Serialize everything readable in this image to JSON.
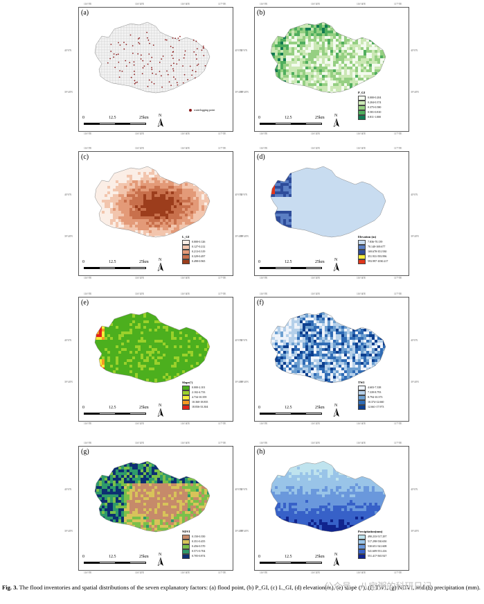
{
  "panels": [
    {
      "id": "a",
      "label": "(a)",
      "type": "points",
      "legend_title": "",
      "legend_items": [],
      "point_label": "waterlogging point",
      "point_color": "#8b1a1a",
      "base": "#f4f4f4",
      "grid": "#c8c8c8"
    },
    {
      "id": "b",
      "label": "(b)",
      "type": "classes",
      "legend_title": "P_GI",
      "legend_items": [
        {
          "label": "0.000-0.204",
          "color": "#f3faee"
        },
        {
          "label": "0.204-0.374",
          "color": "#cbe8b5"
        },
        {
          "label": "0.375-0.580",
          "color": "#95cf82"
        },
        {
          "label": "0.581-0.810",
          "color": "#4fae5d"
        },
        {
          "label": "0.811-1.000",
          "color": "#127a52"
        }
      ]
    },
    {
      "id": "c",
      "label": "(c)",
      "type": "classes",
      "legend_title": "L_GI",
      "legend_items": [
        {
          "label": "0.000-0.126",
          "color": "#fbeee6"
        },
        {
          "label": "0.127-0.212",
          "color": "#f2c5ad"
        },
        {
          "label": "0.213-0.319",
          "color": "#e39a78"
        },
        {
          "label": "0.329-0.497",
          "color": "#c8704c"
        },
        {
          "label": "0.498-0.965",
          "color": "#9c3d1c"
        }
      ]
    },
    {
      "id": "d",
      "label": "(d)",
      "type": "classes",
      "legend_title": "Elevation (m)",
      "legend_items": [
        {
          "label": "7.836-70.139",
          "color": "#c8dcf0"
        },
        {
          "label": "70.140-169.677",
          "color": "#5b7fc4"
        },
        {
          "label": "169.678-351.930",
          "color": "#2e4c9a"
        },
        {
          "label": "351.931-593.996",
          "color": "#f4ec3c"
        },
        {
          "label": "593.997-1030.217",
          "color": "#e0351a"
        }
      ]
    },
    {
      "id": "e",
      "label": "(e)",
      "type": "classes",
      "legend_title": "Slope(°)",
      "legend_items": [
        {
          "label": "0.000-2.101",
          "color": "#4caf1e"
        },
        {
          "label": "2.102-4.733",
          "color": "#9ad12b"
        },
        {
          "label": "4.734-10.359",
          "color": "#f4ee3a"
        },
        {
          "label": "10.360-18.835",
          "color": "#f59a22"
        },
        {
          "label": "18.836-33.304",
          "color": "#e0231a"
        }
      ]
    },
    {
      "id": "f",
      "label": "(f)",
      "type": "classes",
      "legend_title": "TWI",
      "legend_items": [
        {
          "label": "4.603-7.338",
          "color": "#eef3fa"
        },
        {
          "label": "7.339-8.793",
          "color": "#b5d0ea"
        },
        {
          "label": "8.794-10.373",
          "color": "#6d9fd0"
        },
        {
          "label": "10.374-12.660",
          "color": "#2f6bb5"
        },
        {
          "label": "12.661-17.973",
          "color": "#0d3f8f"
        }
      ]
    },
    {
      "id": "g",
      "label": "(g)",
      "type": "classes",
      "legend_title": "NDVI",
      "legend_items": [
        {
          "label": "0.150-0.350",
          "color": "#c68a6a"
        },
        {
          "label": "0.351-0.455",
          "color": "#d8c35a"
        },
        {
          "label": "0.456-0.570",
          "color": "#7ac04a"
        },
        {
          "label": "0.571-0.704",
          "color": "#2f9a6a"
        },
        {
          "label": "0.705-0.874",
          "color": "#0d2f72"
        }
      ]
    },
    {
      "id": "h",
      "label": "(h)",
      "type": "classes",
      "legend_title": "Precipitation(mm)",
      "legend_items": [
        {
          "label": "490.233-517.297",
          "color": "#bfe3ee"
        },
        {
          "label": "517.298-530.650",
          "color": "#99c4e8"
        },
        {
          "label": "530.651-541.608",
          "color": "#6a98dc"
        },
        {
          "label": "541.609-551.416",
          "color": "#3761c8"
        },
        {
          "label": "551.417-565.927",
          "color": "#10248e"
        }
      ]
    }
  ],
  "scale": {
    "n0": "0",
    "n1": "12.5",
    "n2": "25km"
  },
  "north_label": "N",
  "ticks": {
    "x1": "116°0'E",
    "x2": "116°20'E",
    "x3": "116°40'E",
    "x4": "117°0'E",
    "y1": "40°0'N",
    "y2": "39°40'N"
  },
  "caption": {
    "fig": "Fig. 3.",
    "text": " The flood inventories and spatial distributions of the seven explanatory factors: (a) flood point, (b) P_GI, (c) L_GI, (d) elevation(m), (e) slope (°), (f) TWI, (g) NDVI, and (h) precipitation (mm)."
  },
  "watermark": "公众号 · 八宝粥的科研日记"
}
